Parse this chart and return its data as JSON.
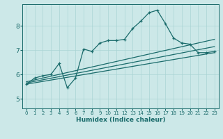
{
  "xlabel": "Humidex (Indice chaleur)",
  "bg_color": "#cce8e8",
  "grid_color": "#aad4d4",
  "line_color": "#1a6b6b",
  "xlim": [
    -0.5,
    23.5
  ],
  "ylim": [
    4.6,
    8.9
  ],
  "xticks": [
    0,
    1,
    2,
    3,
    4,
    5,
    6,
    7,
    8,
    9,
    10,
    11,
    12,
    13,
    14,
    15,
    16,
    17,
    18,
    19,
    20,
    21,
    22,
    23
  ],
  "yticks": [
    5,
    6,
    7,
    8
  ],
  "curve1_x": [
    0,
    1,
    2,
    3,
    4,
    5,
    6,
    7,
    8,
    9,
    10,
    11,
    12,
    13,
    14,
    15,
    16,
    17,
    18,
    19,
    20,
    21,
    22,
    23
  ],
  "curve1_y": [
    5.6,
    5.85,
    5.95,
    6.0,
    6.45,
    5.45,
    5.85,
    7.05,
    6.95,
    7.3,
    7.4,
    7.4,
    7.45,
    7.9,
    8.2,
    8.55,
    8.65,
    8.1,
    7.5,
    7.3,
    7.25,
    6.9,
    6.9,
    6.95
  ],
  "curve2_x": [
    0,
    23
  ],
  "curve2_y": [
    5.6,
    6.9
  ],
  "curve3_x": [
    0,
    23
  ],
  "curve3_y": [
    5.65,
    7.15
  ],
  "curve4_x": [
    0,
    23
  ],
  "curve4_y": [
    5.7,
    7.45
  ]
}
